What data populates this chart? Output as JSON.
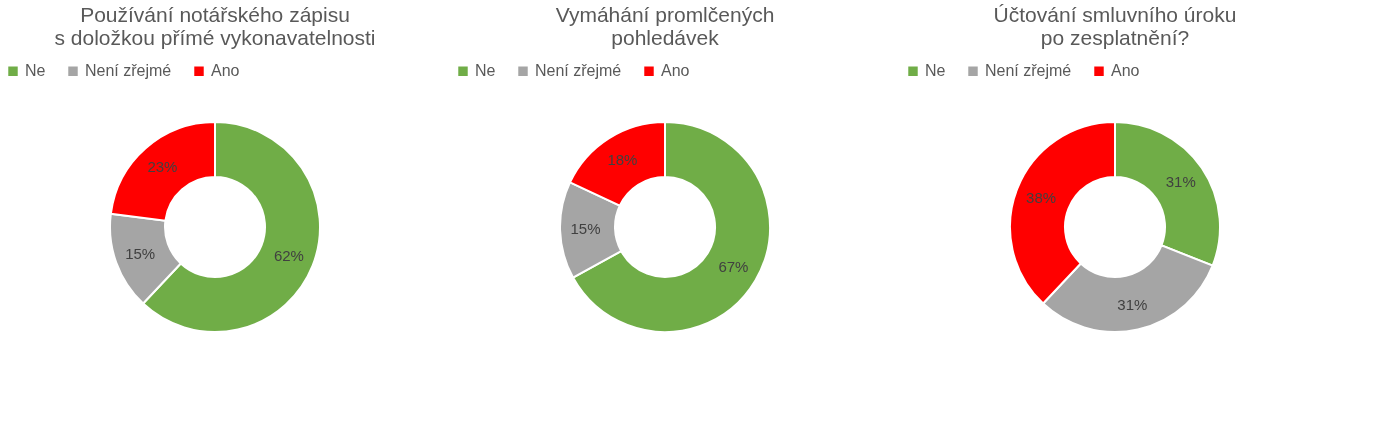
{
  "chart_data": [
    {
      "type": "donut",
      "title": "Používání notářského zápisu\ns doložkou přímé vykonavatelnosti",
      "categories": [
        "Ne",
        "Není zřejmé",
        "Ano"
      ],
      "values": [
        62,
        15,
        23
      ],
      "colors": [
        "#70ad47",
        "#a5a5a5",
        "#ff0000"
      ],
      "value_labels": [
        "62%",
        "15%",
        "23%"
      ],
      "legend": "top"
    },
    {
      "type": "donut",
      "title": "Vymáhání promlčených\npohledávek",
      "categories": [
        "Ne",
        "Není zřejmé",
        "Ano"
      ],
      "values": [
        67,
        15,
        18
      ],
      "colors": [
        "#70ad47",
        "#a5a5a5",
        "#ff0000"
      ],
      "value_labels": [
        "67%",
        "15%",
        "18%"
      ],
      "legend": "top"
    },
    {
      "type": "donut",
      "title": "Účtování smluvního úroku\npo zesplatnění?",
      "categories": [
        "Ne",
        "Není zřejmé",
        "Ano"
      ],
      "values": [
        31,
        31,
        38
      ],
      "colors": [
        "#70ad47",
        "#a5a5a5",
        "#ff0000"
      ],
      "value_labels": [
        "31%",
        "31%",
        "38%"
      ],
      "legend": "top"
    }
  ]
}
